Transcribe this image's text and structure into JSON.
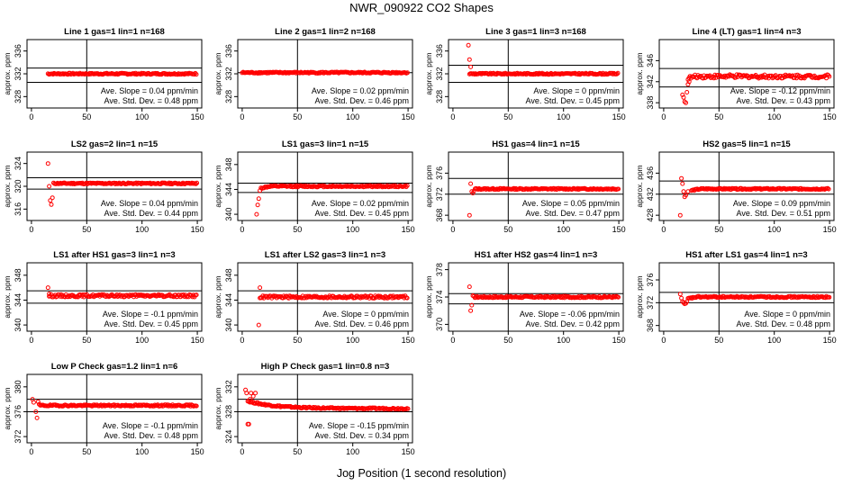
{
  "title": "NWR_090922  CO2 Shapes",
  "xlabel": "Jog Position (1 second resolution)",
  "colors": {
    "points": "#ff0000",
    "lines": "#000000"
  },
  "chart_data": [
    {
      "type": "scatter",
      "title": "Line 1 gas=1 lin=1 n=168",
      "ylabel": "approx. ppm",
      "ylim": [
        326,
        338
      ],
      "yticks": [
        328,
        332,
        336
      ],
      "xlim": [
        -4,
        154
      ],
      "xticks": [
        0,
        50,
        100,
        150
      ],
      "hlines": [
        330.5,
        333
      ],
      "vline": 50,
      "shape": "flat",
      "start": 15,
      "level": 332,
      "noise": 0.12,
      "slope_text": "Ave. Slope =  0.04  ppm/min",
      "std_text": "Ave. Std. Dev. =  0.48  ppm"
    },
    {
      "type": "scatter",
      "title": "Line 2 gas=1 lin=2 n=168",
      "ylabel": "approx. ppm",
      "ylim": [
        326,
        338
      ],
      "yticks": [
        328,
        332,
        336
      ],
      "xlim": [
        -4,
        154
      ],
      "xticks": [
        0,
        50,
        100,
        150
      ],
      "hlines": [
        332.2
      ],
      "vline": 50,
      "shape": "flat",
      "start": 0,
      "level": 332.2,
      "noise": 0.12,
      "slope_text": "Ave. Slope =  0.02  ppm/min",
      "std_text": "Ave. Std. Dev. =  0.46  ppm"
    },
    {
      "type": "scatter",
      "title": "Line 3 gas=1 lin=3 n=168",
      "ylabel": "approx. ppm",
      "ylim": [
        326,
        338
      ],
      "yticks": [
        328,
        332,
        336
      ],
      "xlim": [
        -4,
        154
      ],
      "xticks": [
        0,
        50,
        100,
        150
      ],
      "hlines": [
        330.5,
        333.5
      ],
      "vline": 50,
      "shape": "drop",
      "start": 15,
      "level": 332,
      "noise": 0.12,
      "early": [
        [
          14,
          337
        ],
        [
          15,
          334.5
        ],
        [
          16,
          333.2
        ]
      ],
      "slope_text": "Ave. Slope =  0  ppm/min",
      "std_text": "Ave. Std. Dev. =  0.45  ppm"
    },
    {
      "type": "scatter",
      "title": "Line 4 (LT) gas=1 lin=4 n=3",
      "ylabel": "approx. ppm",
      "ylim": [
        337,
        350
      ],
      "yticks": [
        338,
        342,
        346
      ],
      "xlim": [
        -4,
        154
      ],
      "xticks": [
        0,
        50,
        100,
        150
      ],
      "hlines": [
        341,
        344.5
      ],
      "vline": 50,
      "shape": "rise",
      "start": 22,
      "level": 343,
      "noise": 0.35,
      "early": [
        [
          17,
          339.5
        ],
        [
          18,
          339
        ],
        [
          19,
          338.2
        ],
        [
          20,
          338
        ],
        [
          21,
          340
        ],
        [
          22,
          341.5
        ],
        [
          23,
          342
        ]
      ],
      "slope_text": "Ave. Slope =  -0.12  ppm/min",
      "std_text": "Ave. Std. Dev. =  0.43  ppm"
    },
    {
      "type": "scatter",
      "title": "LS2 gas=2 lin=1 n=15",
      "ylabel": "approx. ppm",
      "ylim": [
        314,
        326
      ],
      "yticks": [
        316,
        320,
        324
      ],
      "xlim": [
        -4,
        154
      ],
      "xticks": [
        0,
        50,
        100,
        150
      ],
      "hlines": [
        319.5,
        321.5
      ],
      "vline": 50,
      "shape": "drop",
      "start": 20,
      "level": 320.5,
      "noise": 0.12,
      "early": [
        [
          15,
          324
        ],
        [
          16,
          320
        ],
        [
          17,
          317.5
        ],
        [
          18,
          316.8
        ],
        [
          19,
          318
        ]
      ],
      "slope_text": "Ave. Slope =  0.04  ppm/min",
      "std_text": "Ave. Std. Dev. =  0.44  ppm"
    },
    {
      "type": "scatter",
      "title": "LS1 gas=3 lin=1 n=15",
      "ylabel": "approx. ppm",
      "ylim": [
        339,
        350
      ],
      "yticks": [
        340,
        344,
        348
      ],
      "xlim": [
        -4,
        154
      ],
      "xticks": [
        0,
        50,
        100,
        150
      ],
      "hlines": [
        343.5,
        345
      ],
      "vline": 50,
      "shape": "rise",
      "start": 17,
      "level": 344.5,
      "noise": 0.12,
      "early": [
        [
          13,
          340
        ],
        [
          14,
          341.5
        ],
        [
          15,
          342.5
        ],
        [
          16,
          343.8
        ]
      ],
      "slope_text": "Ave. Slope =  0.02  ppm/min",
      "std_text": "Ave. Std. Dev. =  0.45  ppm"
    },
    {
      "type": "scatter",
      "title": "HS1 gas=4 lin=1 n=15",
      "ylabel": "approx. ppm",
      "ylim": [
        367,
        380
      ],
      "yticks": [
        368,
        372,
        376
      ],
      "xlim": [
        -4,
        154
      ],
      "xticks": [
        0,
        50,
        100,
        150
      ],
      "hlines": [
        372,
        375
      ],
      "vline": 50,
      "shape": "drop",
      "start": 20,
      "level": 373,
      "noise": 0.12,
      "early": [
        [
          15,
          368
        ],
        [
          16,
          374
        ],
        [
          17,
          372.5
        ],
        [
          18,
          372.2
        ],
        [
          19,
          372.6
        ]
      ],
      "slope_text": "Ave. Slope =  0.05  ppm/min",
      "std_text": "Ave. Std. Dev. =  0.47  ppm"
    },
    {
      "type": "scatter",
      "title": "HS2 gas=5 lin=1 n=15",
      "ylabel": "approx. ppm",
      "ylim": [
        427,
        440
      ],
      "yticks": [
        428,
        432,
        436
      ],
      "xlim": [
        -4,
        154
      ],
      "xticks": [
        0,
        50,
        100,
        150
      ],
      "hlines": [
        432,
        434.5
      ],
      "vline": 50,
      "shape": "rise",
      "start": 25,
      "level": 433,
      "noise": 0.12,
      "early": [
        [
          15,
          428
        ],
        [
          16,
          435
        ],
        [
          17,
          434
        ],
        [
          18,
          432.5
        ],
        [
          19,
          431.5
        ],
        [
          20,
          431.8
        ],
        [
          22,
          432.5
        ]
      ],
      "slope_text": "Ave. Slope =  0.09  ppm/min",
      "std_text": "Ave. Std. Dev. =  0.51  ppm"
    },
    {
      "type": "scatter",
      "title": "LS1 after HS1 gas=3 lin=1 n=3",
      "ylabel": "approx. ppm",
      "ylim": [
        339,
        350
      ],
      "yticks": [
        340,
        344,
        348
      ],
      "xlim": [
        -4,
        154
      ],
      "xticks": [
        0,
        50,
        100,
        150
      ],
      "hlines": [
        343.5,
        345.5
      ],
      "vline": 50,
      "shape": "flat",
      "start": 16,
      "level": 344.7,
      "noise": 0.2,
      "early": [
        [
          15,
          346
        ],
        [
          16,
          345
        ]
      ],
      "slope_text": "Ave. Slope =  -0.1  ppm/min",
      "std_text": "Ave. Std. Dev. =  0.45  ppm"
    },
    {
      "type": "scatter",
      "title": "LS1 after LS2 gas=3 lin=1 n=3",
      "ylabel": "approx. ppm",
      "ylim": [
        339,
        350
      ],
      "yticks": [
        340,
        344,
        348
      ],
      "xlim": [
        -4,
        154
      ],
      "xticks": [
        0,
        50,
        100,
        150
      ],
      "hlines": [
        343.5,
        345.5
      ],
      "vline": 50,
      "shape": "flat",
      "start": 16,
      "level": 344.5,
      "noise": 0.2,
      "early": [
        [
          15,
          340
        ],
        [
          16,
          346
        ]
      ],
      "slope_text": "Ave. Slope =  0  ppm/min",
      "std_text": "Ave. Std. Dev. =  0.46  ppm"
    },
    {
      "type": "scatter",
      "title": "HS1 after HS2 gas=4 lin=1 n=3",
      "ylabel": "approx. ppm",
      "ylim": [
        369,
        379
      ],
      "yticks": [
        370,
        374,
        378
      ],
      "xlim": [
        -4,
        154
      ],
      "xticks": [
        0,
        50,
        100,
        150
      ],
      "hlines": [
        373,
        374.5
      ],
      "vline": 50,
      "shape": "drop",
      "start": 19,
      "level": 374,
      "noise": 0.12,
      "early": [
        [
          15,
          375.5
        ],
        [
          16,
          372
        ],
        [
          17,
          372.8
        ],
        [
          18,
          374.2
        ]
      ],
      "slope_text": "Ave. Slope =  -0.06  ppm/min",
      "std_text": "Ave. Std. Dev. =  0.42  ppm"
    },
    {
      "type": "scatter",
      "title": "HS1 after LS1 gas=4 lin=1 n=3",
      "ylabel": "approx. ppm",
      "ylim": [
        367,
        379
      ],
      "yticks": [
        368,
        372,
        376
      ],
      "xlim": [
        -4,
        154
      ],
      "xticks": [
        0,
        50,
        100,
        150
      ],
      "hlines": [
        372,
        373.8
      ],
      "vline": 50,
      "shape": "rise",
      "start": 22,
      "level": 373,
      "noise": 0.12,
      "early": [
        [
          15,
          373.5
        ],
        [
          16,
          372.8
        ],
        [
          17,
          372.2
        ],
        [
          18,
          372
        ],
        [
          19,
          371.8
        ],
        [
          20,
          371.9
        ],
        [
          21,
          372.2
        ]
      ],
      "slope_text": "Ave. Slope =  0  ppm/min",
      "std_text": "Ave. Std. Dev. =  0.48  ppm"
    },
    {
      "type": "scatter",
      "title": "Low P Check gas=1.2 lin=1 n=6",
      "ylabel": "approx. ppm",
      "ylim": [
        371,
        382
      ],
      "yticks": [
        372,
        376,
        380
      ],
      "xlim": [
        -4,
        154
      ],
      "xticks": [
        0,
        50,
        100,
        150
      ],
      "hlines": [
        376,
        378
      ],
      "vline": 50,
      "shape": "drop",
      "start": 8,
      "level": 377,
      "noise": 0.12,
      "early": [
        [
          1,
          378
        ],
        [
          2,
          377.5
        ],
        [
          4,
          376
        ],
        [
          5,
          375
        ],
        [
          6,
          377.6
        ],
        [
          7,
          377.2
        ]
      ],
      "slope_text": "Ave. Slope =  -0.1  ppm/min",
      "std_text": "Ave. Std. Dev. =  0.48  ppm"
    },
    {
      "type": "scatter",
      "title": "High P Check gas=1 lin=0.8 n=3",
      "ylabel": "approx. ppm",
      "ylim": [
        323,
        334
      ],
      "yticks": [
        324,
        328,
        332
      ],
      "xlim": [
        -4,
        154
      ],
      "xticks": [
        0,
        50,
        100,
        150
      ],
      "hlines": [
        328,
        330
      ],
      "vline": 50,
      "shape": "decay",
      "start": 5,
      "level": 328.5,
      "noise": 0.12,
      "early": [
        [
          3,
          331.5
        ],
        [
          4,
          331
        ],
        [
          5,
          326
        ],
        [
          6,
          326
        ],
        [
          7,
          330
        ],
        [
          8,
          331
        ],
        [
          10,
          330.5
        ],
        [
          12,
          331
        ]
      ],
      "slope_text": "Ave. Slope =  -0.15  ppm/min",
      "std_text": "Ave. Std. Dev. =  0.34  ppm"
    }
  ]
}
